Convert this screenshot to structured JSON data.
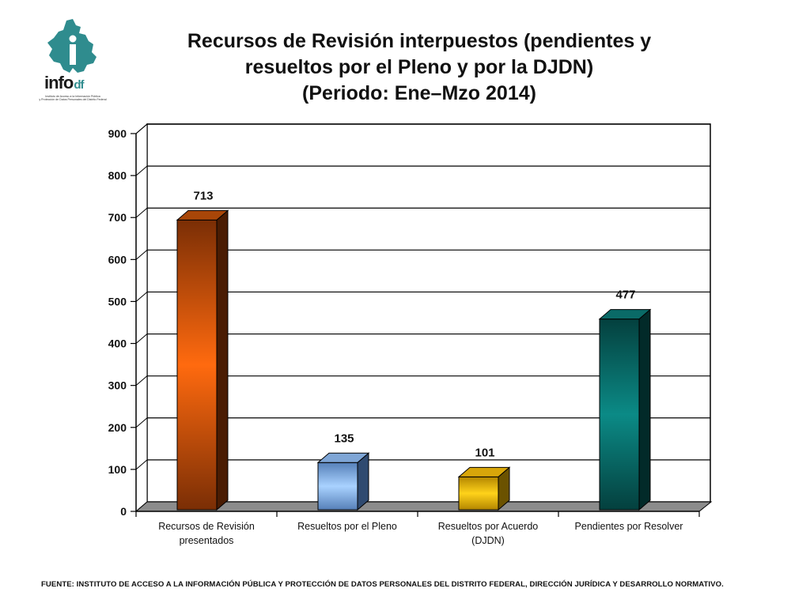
{
  "logo": {
    "word": "info",
    "word_suffix": "df",
    "subtitle_line1": "Instituto de Acceso a la Información Pública",
    "subtitle_line2": "y Protección de Datos Personales del Distrito Federal"
  },
  "title": {
    "line1": "Recursos de Revisión interpuestos (pendientes y",
    "line2": "resueltos por el Pleno y por la DJDN)",
    "line3": "(Periodo: Ene–Mzo 2014)"
  },
  "chart_data": {
    "type": "bar",
    "style": "3d",
    "categories": [
      [
        "Recursos de Revisión",
        "presentados"
      ],
      [
        "Resueltos por el Pleno"
      ],
      [
        "Resueltos por Acuerdo",
        "(DJDN)"
      ],
      [
        "Pendientes por Resolver"
      ]
    ],
    "values": [
      713,
      135,
      101,
      477
    ],
    "data_labels": [
      "713",
      "135",
      "101",
      "477"
    ],
    "bar_colors": [
      {
        "light": "#ff6a0f",
        "dark": "#7a2e05",
        "top": "#a84608",
        "side": "#4a1c03"
      },
      {
        "light": "#a9d2ff",
        "dark": "#5680b8",
        "top": "#7fa6d6",
        "side": "#2f4a70"
      },
      {
        "light": "#ffd21a",
        "dark": "#b38600",
        "top": "#d8a60a",
        "side": "#6b5200"
      },
      {
        "light": "#0b8a86",
        "dark": "#04403e",
        "top": "#0a6a67",
        "side": "#022a29"
      }
    ],
    "ylim": [
      0,
      900
    ],
    "yticks": [
      "0",
      "100",
      "200",
      "300",
      "400",
      "500",
      "600",
      "700",
      "800",
      "900"
    ],
    "grid": true,
    "xlabel": "",
    "ylabel": ""
  },
  "source": "FUENTE: INSTITUTO DE ACCESO A LA INFORMACIÓN PÚBLICA Y PROTECCIÓN DE DATOS PERSONALES DEL DISTRITO FEDERAL, DIRECCIÓN JURÍDICA Y DESARROLLO NORMATIVO."
}
